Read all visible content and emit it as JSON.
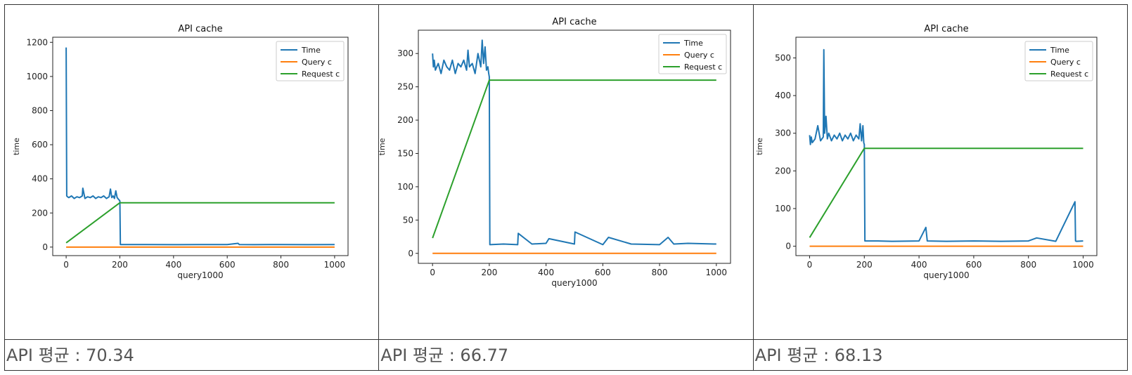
{
  "panels": [
    {
      "average_label": "API 평균 : 70.34",
      "chart": {
        "title": "API cache",
        "xlabel": "query1000",
        "ylabel": "time",
        "ylim": [
          -50,
          1230
        ],
        "xlim": [
          -50,
          1050
        ],
        "yticks": [
          0,
          200,
          400,
          600,
          800,
          1000,
          1200
        ],
        "xticks": [
          0,
          200,
          400,
          600,
          800,
          1000
        ],
        "legend": [
          "Time",
          "Query c",
          "Request c"
        ]
      }
    },
    {
      "average_label": "API 평균 : 66.77",
      "chart": {
        "title": "API cache",
        "xlabel": "query1000",
        "ylabel": "time",
        "ylim": [
          -15,
          335
        ],
        "xlim": [
          -50,
          1050
        ],
        "yticks": [
          0,
          50,
          100,
          150,
          200,
          250,
          300
        ],
        "xticks": [
          0,
          200,
          400,
          600,
          800,
          1000
        ],
        "legend": [
          "Time",
          "Query c",
          "Request c"
        ]
      }
    },
    {
      "average_label": "API 평균 : 68.13",
      "chart": {
        "title": "API cache",
        "xlabel": "query1000",
        "ylabel": "time",
        "ylim": [
          -25,
          555
        ],
        "xlim": [
          -50,
          1050
        ],
        "yticks": [
          0,
          100,
          200,
          300,
          400,
          500
        ],
        "xticks": [
          0,
          200,
          400,
          600,
          800,
          1000
        ],
        "legend": [
          "Time",
          "Query c",
          "Request c"
        ]
      }
    }
  ],
  "chart_data": [
    {
      "type": "line",
      "title": "API cache",
      "xlabel": "query1000",
      "ylabel": "time",
      "xlim": [
        -50,
        1050
      ],
      "ylim": [
        -50,
        1230
      ],
      "legend_placement": "top-right",
      "series": [
        {
          "name": "Time",
          "color": "#1f77b4",
          "x": [
            0,
            2,
            5,
            10,
            20,
            30,
            40,
            50,
            60,
            62,
            70,
            80,
            90,
            100,
            110,
            120,
            130,
            140,
            150,
            160,
            165,
            170,
            175,
            180,
            185,
            190,
            195,
            198,
            200,
            202,
            250,
            300,
            400,
            500,
            600,
            640,
            645,
            700,
            800,
            900,
            1000
          ],
          "y": [
            1170,
            300,
            295,
            290,
            300,
            285,
            295,
            290,
            300,
            345,
            285,
            295,
            290,
            300,
            285,
            295,
            290,
            300,
            285,
            295,
            340,
            290,
            300,
            285,
            330,
            290,
            280,
            275,
            270,
            15,
            15,
            15,
            14,
            15,
            15,
            22,
            15,
            14,
            15,
            14,
            15
          ]
        },
        {
          "name": "Query c",
          "color": "#ff7f0e",
          "x": [
            0,
            1000
          ],
          "y": [
            0,
            0
          ]
        },
        {
          "name": "Request c",
          "color": "#2ca02c",
          "x": [
            0,
            200,
            1000
          ],
          "y": [
            25,
            260,
            260
          ]
        }
      ]
    },
    {
      "type": "line",
      "title": "API cache",
      "xlabel": "query1000",
      "ylabel": "time",
      "xlim": [
        -50,
        1050
      ],
      "ylim": [
        -15,
        335
      ],
      "legend_placement": "top-right",
      "series": [
        {
          "name": "Time",
          "color": "#1f77b4",
          "x": [
            0,
            3,
            6,
            10,
            20,
            30,
            40,
            50,
            60,
            70,
            80,
            90,
            100,
            110,
            120,
            125,
            130,
            140,
            150,
            160,
            170,
            175,
            180,
            185,
            190,
            195,
            198,
            200,
            202,
            250,
            300,
            302,
            350,
            400,
            410,
            500,
            502,
            600,
            620,
            700,
            800,
            830,
            850,
            900,
            1000
          ],
          "y": [
            300,
            280,
            290,
            275,
            285,
            270,
            290,
            280,
            275,
            290,
            270,
            285,
            280,
            290,
            275,
            305,
            280,
            285,
            270,
            300,
            280,
            320,
            285,
            310,
            275,
            280,
            270,
            265,
            13,
            14,
            13,
            30,
            14,
            15,
            22,
            14,
            32,
            13,
            24,
            14,
            13,
            24,
            14,
            15,
            14
          ]
        },
        {
          "name": "Query c",
          "color": "#ff7f0e",
          "x": [
            0,
            1000
          ],
          "y": [
            0,
            0
          ]
        },
        {
          "name": "Request c",
          "color": "#2ca02c",
          "x": [
            0,
            200,
            1000
          ],
          "y": [
            23,
            260,
            260
          ]
        }
      ]
    },
    {
      "type": "line",
      "title": "API cache",
      "xlabel": "query1000",
      "ylabel": "time",
      "xlim": [
        -50,
        1050
      ],
      "ylim": [
        -25,
        555
      ],
      "legend_placement": "top-right",
      "series": [
        {
          "name": "Time",
          "color": "#1f77b4",
          "x": [
            0,
            3,
            6,
            10,
            20,
            30,
            40,
            50,
            52,
            55,
            60,
            65,
            70,
            80,
            90,
            100,
            110,
            120,
            130,
            140,
            150,
            160,
            170,
            180,
            185,
            190,
            195,
            198,
            200,
            202,
            250,
            300,
            400,
            425,
            430,
            500,
            600,
            700,
            800,
            830,
            900,
            970,
            972,
            975,
            1000
          ],
          "y": [
            295,
            270,
            290,
            275,
            285,
            320,
            280,
            290,
            522,
            300,
            345,
            285,
            300,
            280,
            295,
            285,
            300,
            280,
            295,
            285,
            300,
            280,
            295,
            285,
            325,
            280,
            320,
            275,
            270,
            14,
            14,
            13,
            14,
            50,
            14,
            13,
            14,
            13,
            14,
            22,
            13,
            118,
            14,
            13,
            14
          ]
        },
        {
          "name": "Query c",
          "color": "#ff7f0e",
          "x": [
            0,
            1000
          ],
          "y": [
            0,
            0
          ]
        },
        {
          "name": "Request c",
          "color": "#2ca02c",
          "x": [
            0,
            200,
            1000
          ],
          "y": [
            23,
            260,
            260
          ]
        }
      ]
    }
  ]
}
